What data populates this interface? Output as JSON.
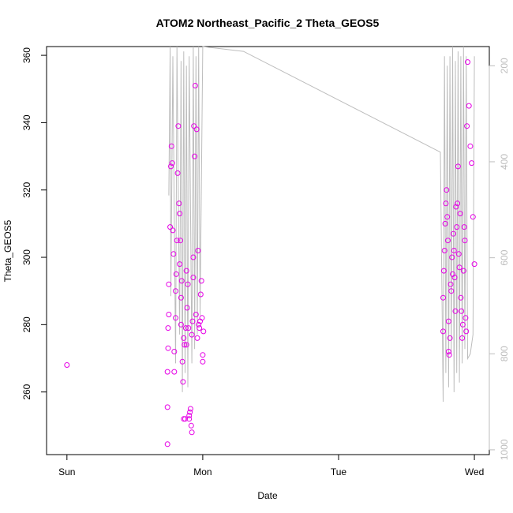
{
  "chart_data": {
    "type": "scatter",
    "title": "ATOM2 Northeast_Pacific_2 Theta_GEOS5",
    "xlabel": "Date",
    "ylabel": "Theta_GEOS5",
    "x_tick_labels": [
      "Sun",
      "Mon",
      "Tue",
      "Wed"
    ],
    "x_tick_values": [
      0,
      1,
      2,
      3
    ],
    "xlim": [
      -0.15,
      3.11
    ],
    "ylim": [
      241.4,
      362.6
    ],
    "y_ticks": [
      260,
      280,
      300,
      320,
      340,
      360
    ],
    "y2_label": "",
    "y2_ticks": [
      200,
      400,
      600,
      800,
      1000
    ],
    "y2_lim": [
      1010,
      160
    ],
    "point_color": "#e600e6",
    "line_color": "#bdbdbd",
    "series": [
      {
        "kind": "points",
        "x": [
          0.0,
          0.74,
          0.74,
          0.74,
          0.745,
          0.745,
          0.75,
          0.75,
          0.76,
          0.765,
          0.77,
          0.775,
          0.78,
          0.785,
          0.79,
          0.79,
          0.8,
          0.8,
          0.805,
          0.81,
          0.815,
          0.82,
          0.825,
          0.83,
          0.83,
          0.835,
          0.84,
          0.84,
          0.845,
          0.85,
          0.855,
          0.86,
          0.86,
          0.865,
          0.87,
          0.875,
          0.88,
          0.88,
          0.885,
          0.89,
          0.895,
          0.9,
          0.9,
          0.905,
          0.91,
          0.915,
          0.92,
          0.92,
          0.925,
          0.93,
          0.93,
          0.935,
          0.94,
          0.945,
          0.95,
          0.955,
          0.96,
          0.965,
          0.97,
          0.975,
          0.98,
          0.985,
          0.99,
          0.995,
          1.0,
          1.0,
          1.005,
          2.77,
          2.77,
          2.775,
          2.78,
          2.785,
          2.79,
          2.795,
          2.8,
          2.805,
          2.81,
          2.81,
          2.815,
          2.82,
          2.825,
          2.83,
          2.835,
          2.84,
          2.845,
          2.85,
          2.855,
          2.86,
          2.865,
          2.87,
          2.875,
          2.88,
          2.885,
          2.89,
          2.895,
          2.9,
          2.905,
          2.91,
          2.915,
          2.92,
          2.925,
          2.93,
          2.935,
          2.94,
          2.945,
          2.95,
          2.96,
          2.97,
          2.98,
          2.99,
          3.0
        ],
        "y": [
          268,
          244.5,
          255.5,
          266,
          273,
          279,
          283,
          292,
          309,
          327,
          333,
          328,
          308,
          301,
          266,
          272,
          282,
          290,
          295,
          305,
          325,
          339,
          316,
          313,
          298,
          305,
          288,
          280,
          293,
          269,
          263,
          252,
          276,
          274,
          252,
          279,
          296,
          274,
          285,
          292,
          279,
          252,
          253,
          254,
          255,
          250,
          248,
          277,
          281,
          294,
          300,
          339,
          330,
          351,
          283,
          338,
          276,
          302,
          280,
          279,
          281,
          289,
          293,
          282,
          271,
          269,
          278,
          278,
          288,
          296,
          302,
          310,
          316,
          320,
          312,
          305,
          281,
          272,
          271,
          276,
          292,
          290,
          300,
          295,
          307,
          302,
          294,
          284,
          315,
          309,
          316,
          327,
          301,
          297,
          313,
          288,
          284,
          276,
          280,
          296,
          309,
          305,
          282,
          278,
          339,
          358,
          345,
          333,
          328,
          312,
          298
        ],
        "right_axis": [
          null,
          null,
          null,
          null,
          null,
          null,
          null,
          null,
          null,
          null,
          null,
          null,
          null,
          null,
          null,
          null,
          null,
          null,
          null,
          null,
          null,
          null,
          null,
          null,
          null,
          null,
          null,
          null,
          null,
          null,
          null,
          null,
          null,
          null,
          null,
          null,
          null,
          null,
          null,
          null,
          null,
          null,
          null,
          null,
          null,
          null,
          null,
          null,
          null,
          null,
          null,
          null,
          null,
          null,
          null,
          null,
          null,
          null,
          null,
          null,
          null,
          null,
          null,
          null,
          null,
          null,
          null,
          null,
          null,
          null,
          null,
          null,
          null,
          null,
          null,
          null,
          null,
          null,
          null,
          null,
          null,
          null,
          null,
          null,
          null,
          null,
          null,
          null,
          null,
          null,
          null,
          null,
          null,
          null,
          null,
          null,
          null,
          null,
          null,
          null,
          null,
          null,
          null,
          null,
          null,
          null,
          null,
          null,
          null,
          null,
          null
        ]
      },
      {
        "kind": "line",
        "axis": "right",
        "x": [
          0.75,
          0.76,
          0.765,
          0.78,
          0.8,
          0.81,
          0.83,
          0.84,
          0.85,
          0.86,
          0.87,
          0.88,
          0.89,
          0.9,
          0.92,
          0.93,
          0.94,
          0.95,
          0.96,
          0.97,
          0.98,
          1.0,
          1.3,
          2.75,
          2.77,
          2.78,
          2.79,
          2.8,
          2.81,
          2.82,
          2.83,
          2.84,
          2.85,
          2.86,
          2.87,
          2.88,
          2.89,
          2.9,
          2.91,
          2.92,
          2.93,
          2.94,
          2.95,
          2.97,
          2.99,
          3.0
        ],
        "y": [
          470,
          160,
          680,
          180,
          820,
          160,
          760,
          190,
          880,
          170,
          840,
          200,
          870,
          180,
          820,
          160,
          790,
          180,
          760,
          160,
          720,
          160,
          170,
          380,
          900,
          180,
          840,
          200,
          870,
          180,
          800,
          160,
          880,
          190,
          840,
          170,
          860,
          180,
          820,
          160,
          790,
          180,
          810,
          800,
          760,
          180
        ]
      }
    ]
  }
}
